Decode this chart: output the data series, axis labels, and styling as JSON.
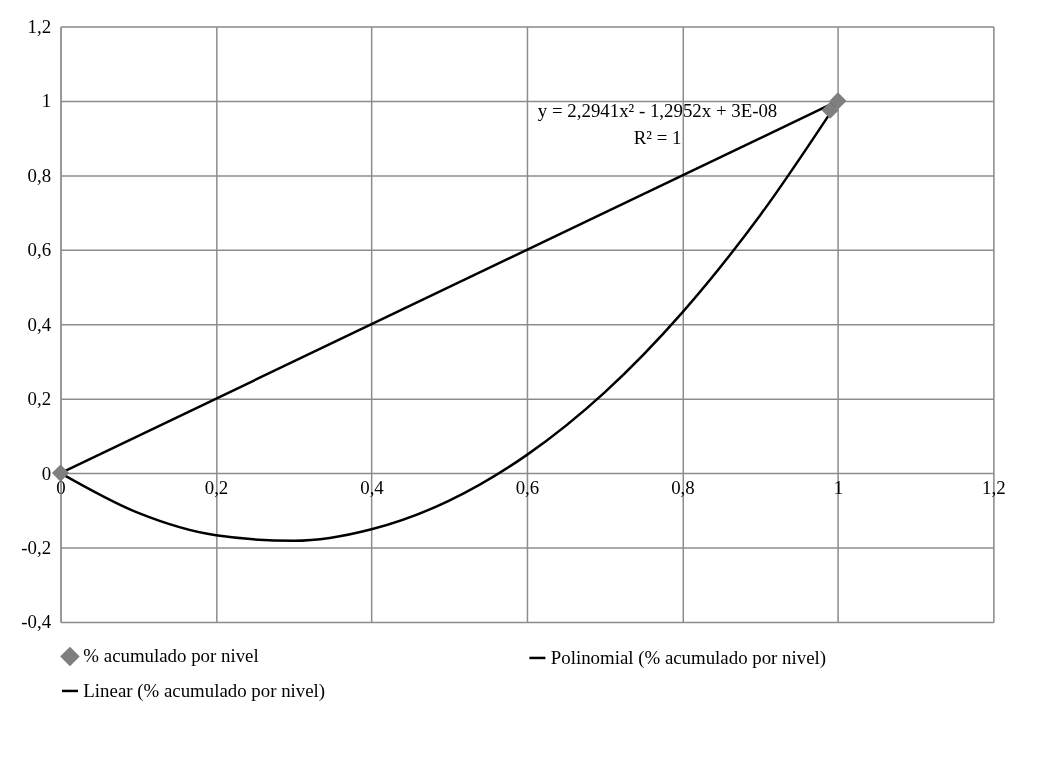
{
  "chart_data": {
    "type": "scatter",
    "series": [
      {
        "name": "% acumulado por nivel",
        "color": "#7f7f7f",
        "marker": "diamond",
        "x": [
          0,
          0.99,
          1
        ],
        "values": [
          0,
          0.975,
          1
        ]
      },
      {
        "name": "Polinomial (% acumulado por nivel)",
        "type": "line",
        "color": "#000000",
        "marker": "none",
        "line_style": "solid",
        "x": [
          0,
          0.1,
          0.2,
          0.3,
          0.4,
          0.5,
          0.6,
          0.7,
          0.8,
          0.9,
          1.0
        ],
        "values": [
          0,
          -0.107,
          -0.167,
          -0.182,
          -0.151,
          -0.074,
          0.049,
          0.217,
          0.432,
          0.693,
          0.999
        ]
      },
      {
        "name": "Linear (% acumulado por nivel)",
        "type": "line",
        "color": "#000000",
        "marker": "none",
        "line_style": "solid",
        "x": [
          0,
          1
        ],
        "values": [
          0,
          1
        ]
      }
    ],
    "xlim": [
      0,
      1.2
    ],
    "xticks": [
      0,
      {
        "value": 0.2,
        "label": "0,2"
      },
      {
        "value": 0.4,
        "label": "0,4"
      },
      {
        "value": 0.6,
        "label": "0,6"
      },
      {
        "value": 0.8,
        "label": "0,8"
      },
      1,
      {
        "value": 1.2,
        "label": "1,2"
      }
    ],
    "ylim": [
      -0.4,
      1.2
    ],
    "yticks": [
      {
        "value": -0.4,
        "label": "-0,4"
      },
      {
        "value": -0.2,
        "label": "-0,2"
      },
      0,
      {
        "value": 0.2,
        "label": "0,2"
      },
      {
        "value": 0.4,
        "label": "0,4"
      },
      {
        "value": 0.6,
        "label": "0,6"
      },
      {
        "value": 0.8,
        "label": "0,8"
      },
      1,
      {
        "value": 1.2,
        "label": "1,2"
      }
    ],
    "grid": true,
    "legend": "bottom",
    "annotations": [
      "y = 2,2941x² - 1,2952x + 3E-08",
      "R² = 1"
    ]
  }
}
